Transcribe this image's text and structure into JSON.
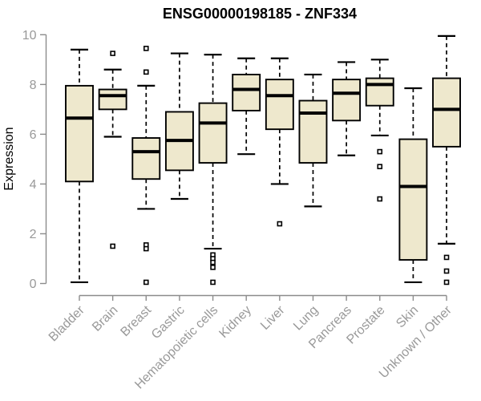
{
  "chart_data": {
    "type": "box",
    "title": "ENSG00000198185 - ZNF334",
    "xlabel": "",
    "ylabel": "Expression",
    "ylim": [
      0,
      10
    ],
    "yticks": [
      0,
      2,
      4,
      6,
      8,
      10
    ],
    "grid": false,
    "legend": "none",
    "categories": [
      "Bladder",
      "Brain",
      "Breast",
      "Gastric",
      "Hematopoietic cells",
      "Kidney",
      "Liver",
      "Lung",
      "Pancreas",
      "Prostate",
      "Skin",
      "Unknown / Other"
    ],
    "series": [
      {
        "category": "Bladder",
        "whisker_low": 0.05,
        "q1": 4.1,
        "median": 6.65,
        "q3": 7.95,
        "whisker_high": 9.4,
        "outliers": []
      },
      {
        "category": "Brain",
        "whisker_low": 5.9,
        "q1": 7.0,
        "median": 7.55,
        "q3": 7.8,
        "whisker_high": 8.6,
        "outliers": [
          9.25,
          1.5
        ]
      },
      {
        "category": "Breast",
        "whisker_low": 3.0,
        "q1": 4.2,
        "median": 5.3,
        "q3": 5.85,
        "whisker_high": 7.95,
        "outliers": [
          9.45,
          8.5,
          1.55,
          1.4,
          0.05
        ]
      },
      {
        "category": "Gastric",
        "whisker_low": 3.4,
        "q1": 4.55,
        "median": 5.75,
        "q3": 6.9,
        "whisker_high": 9.25,
        "outliers": []
      },
      {
        "category": "Hematopoietic cells",
        "whisker_low": 1.4,
        "q1": 4.85,
        "median": 6.45,
        "q3": 7.25,
        "whisker_high": 9.2,
        "outliers": [
          1.15,
          1.0,
          0.85,
          0.65,
          0.05
        ]
      },
      {
        "category": "Kidney",
        "whisker_low": 5.2,
        "q1": 6.95,
        "median": 7.8,
        "q3": 8.4,
        "whisker_high": 9.05,
        "outliers": []
      },
      {
        "category": "Liver",
        "whisker_low": 4.0,
        "q1": 6.2,
        "median": 7.55,
        "q3": 8.2,
        "whisker_high": 9.05,
        "outliers": [
          2.4
        ]
      },
      {
        "category": "Lung",
        "whisker_low": 3.1,
        "q1": 4.85,
        "median": 6.85,
        "q3": 7.35,
        "whisker_high": 8.4,
        "outliers": []
      },
      {
        "category": "Pancreas",
        "whisker_low": 5.15,
        "q1": 6.55,
        "median": 7.65,
        "q3": 8.2,
        "whisker_high": 8.9,
        "outliers": []
      },
      {
        "category": "Prostate",
        "whisker_low": 5.95,
        "q1": 7.15,
        "median": 8.0,
        "q3": 8.25,
        "whisker_high": 9.0,
        "outliers": [
          5.3,
          4.7,
          3.4
        ]
      },
      {
        "category": "Skin",
        "whisker_low": 0.05,
        "q1": 0.95,
        "median": 3.9,
        "q3": 5.8,
        "whisker_high": 7.85,
        "outliers": []
      },
      {
        "category": "Unknown / Other",
        "whisker_low": 1.6,
        "q1": 5.5,
        "median": 7.0,
        "q3": 8.25,
        "whisker_high": 9.95,
        "outliers": [
          1.05,
          0.5,
          0.05
        ]
      }
    ],
    "colors": {
      "box_fill": "#EEE8CD",
      "box_stroke": "#000000",
      "median": "#000000",
      "axis": "#8C8C8C",
      "tick_label": "#999999",
      "title": "#000000",
      "background": "#FFFFFF"
    }
  }
}
